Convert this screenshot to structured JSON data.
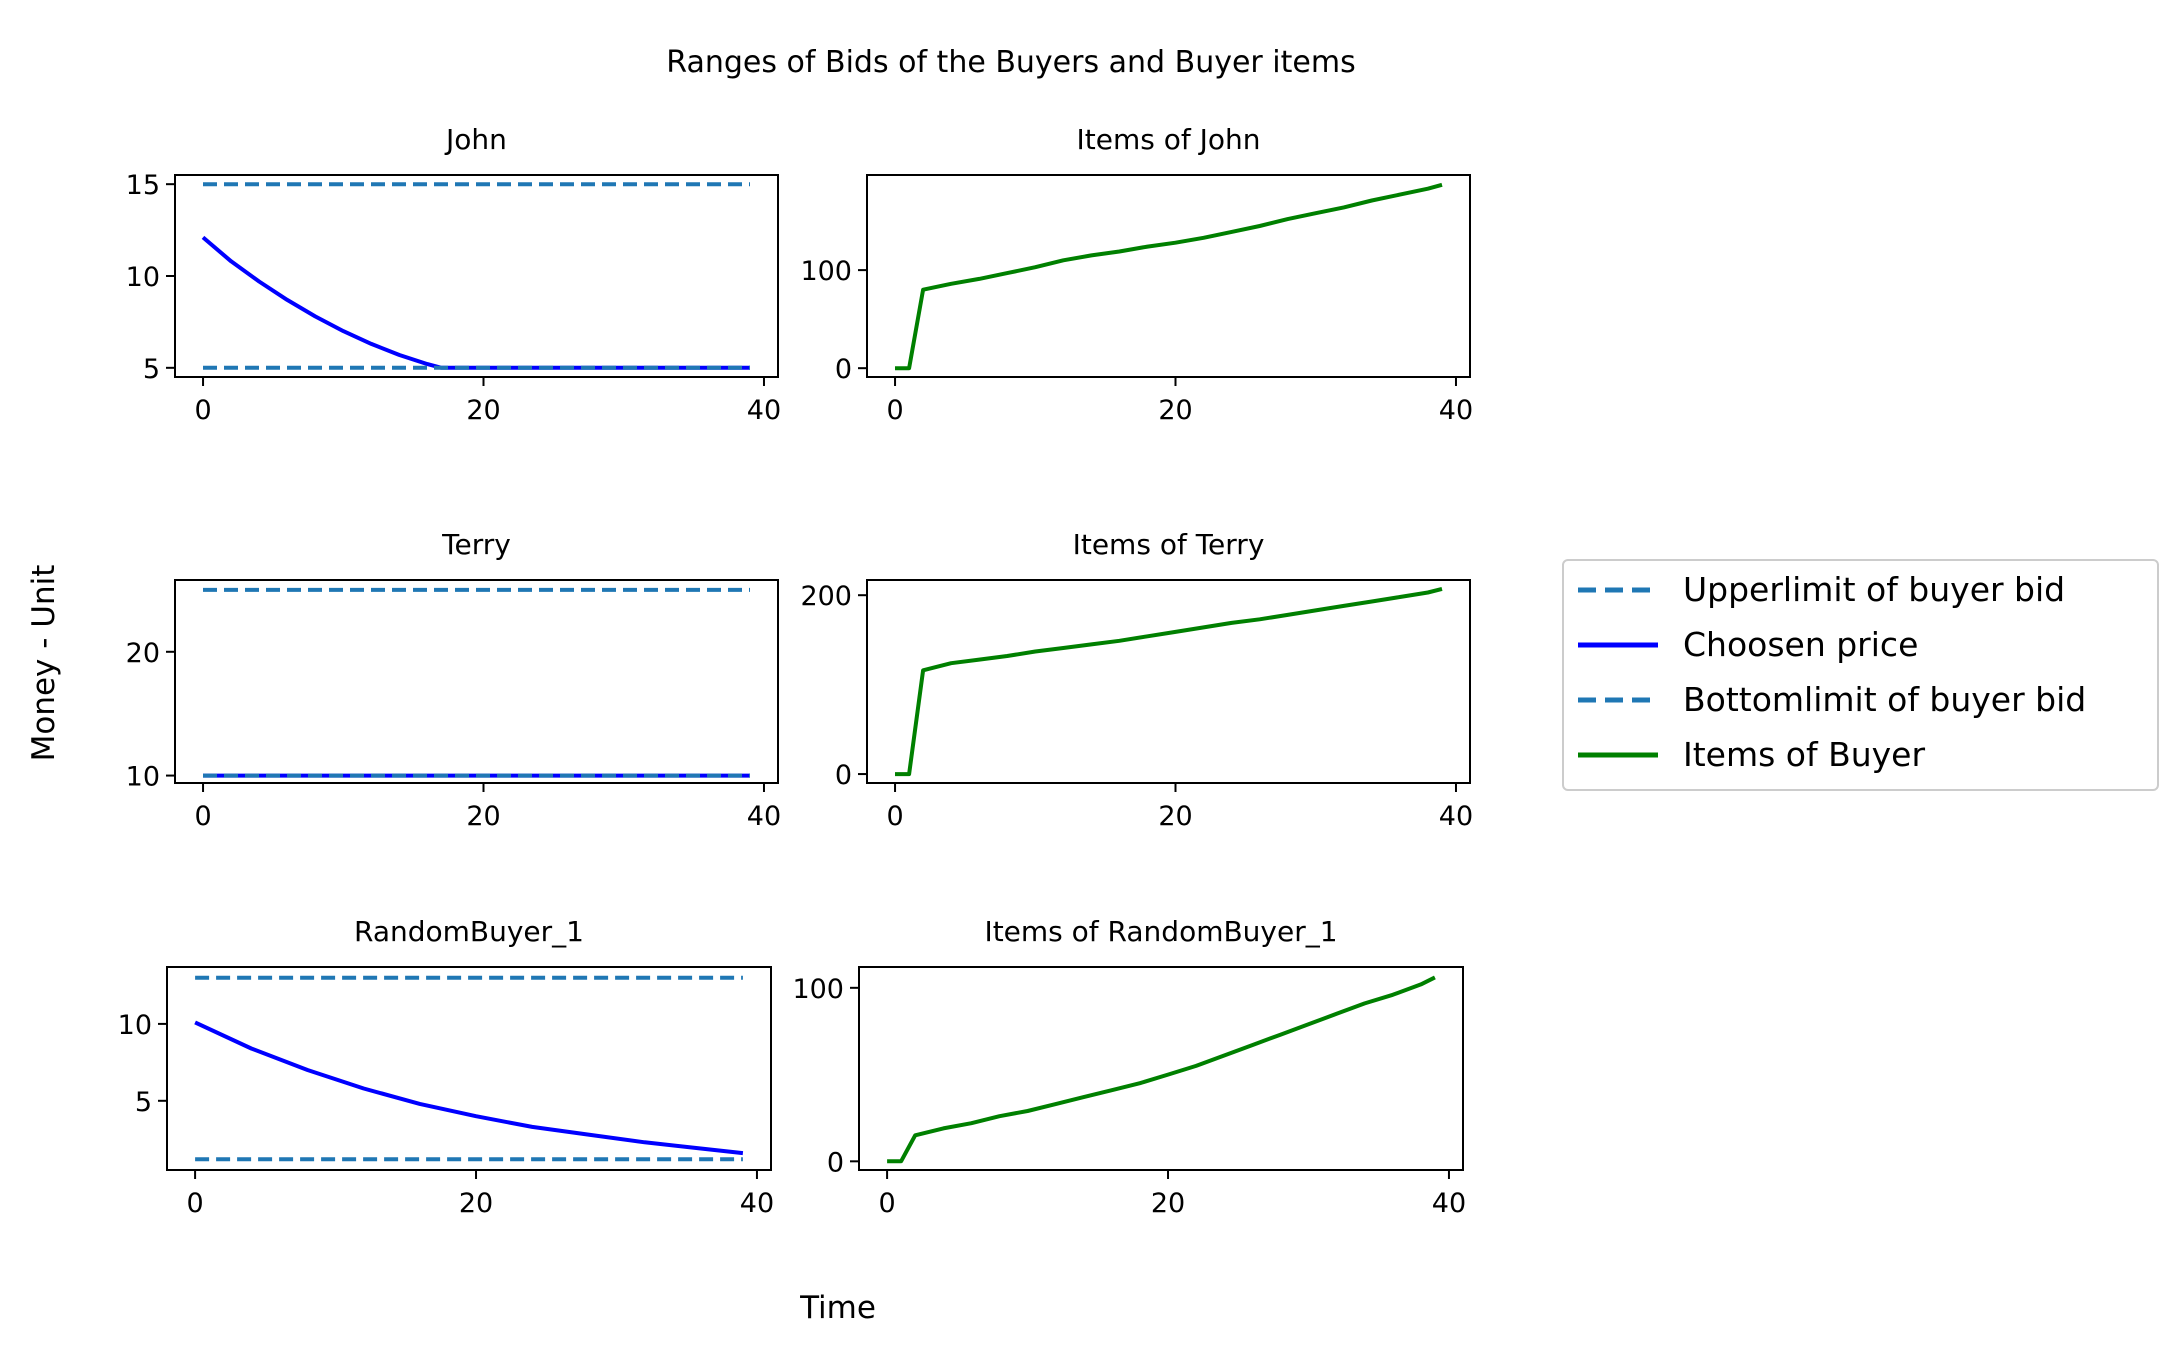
{
  "figure": {
    "title": "Ranges of Bids of the Buyers and Buyer items",
    "xlabel": "Time",
    "ylabel": "Money - Unit"
  },
  "legend": {
    "placement": "right",
    "entries": [
      {
        "label": "Upperlimit of buyer bid",
        "color": "#1f77b4",
        "style": "dashed"
      },
      {
        "label": "Choosen price",
        "color": "#0000ff",
        "style": "solid"
      },
      {
        "label": "Bottomlimit of buyer bid",
        "color": "#1f77b4",
        "style": "dashed"
      },
      {
        "label": "Items of Buyer",
        "color": "#008000",
        "style": "solid"
      }
    ]
  },
  "chart_data": [
    {
      "type": "line",
      "title": "John",
      "xlim": [
        -2,
        41
      ],
      "ylim": [
        4.5,
        15.5
      ],
      "xticks": [
        0,
        20,
        40
      ],
      "yticks": [
        5,
        10,
        15
      ],
      "series": [
        {
          "name": "Upperlimit of buyer bid",
          "color": "#1f77b4",
          "dashed": true,
          "x": [
            0,
            39
          ],
          "y": [
            15,
            15
          ]
        },
        {
          "name": "Choosen price",
          "color": "#0000ff",
          "dashed": false,
          "x": [
            0,
            2,
            4,
            6,
            8,
            10,
            12,
            14,
            16,
            17,
            39
          ],
          "y": [
            12.1,
            10.8,
            9.7,
            8.7,
            7.8,
            7.0,
            6.3,
            5.7,
            5.2,
            5.0,
            5.0
          ]
        },
        {
          "name": "Bottomlimit of buyer bid",
          "color": "#1f77b4",
          "dashed": true,
          "x": [
            0,
            39
          ],
          "y": [
            5,
            5
          ]
        }
      ]
    },
    {
      "type": "line",
      "title": "Items of John",
      "xlim": [
        -2,
        41
      ],
      "ylim": [
        -9,
        197
      ],
      "xticks": [
        0,
        20,
        40
      ],
      "yticks": [
        0,
        100
      ],
      "series": [
        {
          "name": "Items of Buyer",
          "color": "#008000",
          "dashed": false,
          "x": [
            0,
            1,
            2,
            4,
            6,
            8,
            10,
            12,
            14,
            16,
            18,
            20,
            22,
            24,
            26,
            28,
            30,
            32,
            34,
            36,
            38,
            39
          ],
          "y": [
            0,
            0,
            80,
            86,
            91,
            97,
            103,
            110,
            115,
            119,
            124,
            128,
            133,
            139,
            145,
            152,
            158,
            164,
            171,
            177,
            183,
            187
          ]
        }
      ]
    },
    {
      "type": "line",
      "title": "Terry",
      "xlim": [
        -2,
        41
      ],
      "ylim": [
        9.4,
        25.8
      ],
      "xticks": [
        0,
        20,
        40
      ],
      "yticks": [
        10,
        20
      ],
      "series": [
        {
          "name": "Upperlimit of buyer bid",
          "color": "#1f77b4",
          "dashed": true,
          "x": [
            0,
            39
          ],
          "y": [
            25,
            25
          ]
        },
        {
          "name": "Choosen price",
          "color": "#0000ff",
          "dashed": false,
          "x": [
            0,
            39
          ],
          "y": [
            10,
            10
          ]
        },
        {
          "name": "Bottomlimit of buyer bid",
          "color": "#1f77b4",
          "dashed": true,
          "x": [
            0,
            39
          ],
          "y": [
            10,
            10
          ]
        }
      ]
    },
    {
      "type": "line",
      "title": "Items of Terry",
      "xlim": [
        -2,
        41
      ],
      "ylim": [
        -10,
        217
      ],
      "xticks": [
        0,
        20,
        40
      ],
      "yticks": [
        0,
        200
      ],
      "series": [
        {
          "name": "Items of Buyer",
          "color": "#008000",
          "dashed": false,
          "x": [
            0,
            1,
            2,
            4,
            6,
            8,
            10,
            12,
            14,
            16,
            18,
            20,
            22,
            24,
            26,
            28,
            30,
            32,
            34,
            36,
            38,
            39
          ],
          "y": [
            0,
            0,
            116,
            124,
            128,
            132,
            137,
            141,
            145,
            149,
            154,
            159,
            164,
            169,
            173,
            178,
            183,
            188,
            193,
            198,
            203,
            207
          ]
        }
      ]
    },
    {
      "type": "line",
      "title": "RandomBuyer_1",
      "xlim": [
        -2,
        41
      ],
      "ylim": [
        0.5,
        13.7
      ],
      "xticks": [
        0,
        20,
        40
      ],
      "yticks": [
        5,
        10
      ],
      "series": [
        {
          "name": "Upperlimit of buyer bid",
          "color": "#1f77b4",
          "dashed": true,
          "x": [
            0,
            39
          ],
          "y": [
            13,
            13
          ]
        },
        {
          "name": "Choosen price",
          "color": "#0000ff",
          "dashed": false,
          "x": [
            0,
            4,
            8,
            12,
            16,
            20,
            24,
            28,
            32,
            36,
            39
          ],
          "y": [
            10.1,
            8.4,
            7.0,
            5.8,
            4.8,
            4.0,
            3.3,
            2.8,
            2.3,
            1.9,
            1.6
          ]
        },
        {
          "name": "Bottomlimit of buyer bid",
          "color": "#1f77b4",
          "dashed": true,
          "x": [
            0,
            39
          ],
          "y": [
            1.2,
            1.2
          ]
        }
      ]
    },
    {
      "type": "line",
      "title": "Items of RandomBuyer_1",
      "xlim": [
        -2,
        41
      ],
      "ylim": [
        -5,
        112
      ],
      "xticks": [
        0,
        20,
        40
      ],
      "yticks": [
        0,
        100
      ],
      "series": [
        {
          "name": "Items of Buyer",
          "color": "#008000",
          "dashed": false,
          "x": [
            0,
            1,
            2,
            4,
            6,
            8,
            10,
            12,
            14,
            16,
            18,
            20,
            22,
            24,
            26,
            28,
            30,
            32,
            34,
            36,
            38,
            39
          ],
          "y": [
            0,
            0,
            15,
            19,
            22,
            26,
            29,
            33,
            37,
            41,
            45,
            50,
            55,
            61,
            67,
            73,
            79,
            85,
            91,
            96,
            102,
            106
          ]
        }
      ]
    }
  ]
}
